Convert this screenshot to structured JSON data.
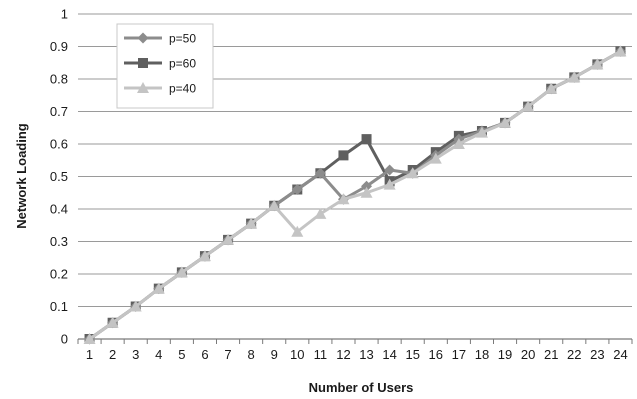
{
  "chart_data": {
    "type": "line",
    "title": "",
    "xlabel": "Number of Users",
    "ylabel": "Network Loading",
    "categories": [
      "1",
      "2",
      "3",
      "4",
      "5",
      "6",
      "7",
      "8",
      "9",
      "10",
      "11",
      "12",
      "13",
      "14",
      "15",
      "16",
      "17",
      "18",
      "19",
      "20",
      "21",
      "22",
      "23",
      "24"
    ],
    "ylim": [
      0,
      1
    ],
    "yticks": [
      "0",
      "0.1",
      "0.2",
      "0.3",
      "0.4",
      "0.5",
      "0.6",
      "0.7",
      "0.8",
      "0.9",
      "1"
    ],
    "grid": "horizontal",
    "legend_position": "top-left",
    "series": [
      {
        "name": "p=50",
        "marker": "diamond",
        "color": "#8c8c8c",
        "values": [
          0,
          0.05,
          0.1,
          0.155,
          0.205,
          0.255,
          0.305,
          0.355,
          0.41,
          0.46,
          0.51,
          0.43,
          0.47,
          0.52,
          0.51,
          0.565,
          0.615,
          0.64,
          0.665,
          0.715,
          0.77,
          0.805,
          0.845,
          0.885
        ]
      },
      {
        "name": "p=60",
        "marker": "square",
        "color": "#5f5f5f",
        "values": [
          0,
          0.05,
          0.1,
          0.155,
          0.205,
          0.255,
          0.305,
          0.355,
          0.41,
          0.46,
          0.51,
          0.565,
          0.615,
          0.485,
          0.52,
          0.575,
          0.625,
          0.64,
          0.665,
          0.715,
          0.77,
          0.805,
          0.845,
          0.885
        ]
      },
      {
        "name": "p=40",
        "marker": "triangle",
        "color": "#c4c4c4",
        "values": [
          0,
          0.05,
          0.1,
          0.155,
          0.205,
          0.255,
          0.305,
          0.355,
          0.41,
          0.33,
          0.385,
          0.43,
          0.45,
          0.475,
          0.51,
          0.555,
          0.6,
          0.635,
          0.665,
          0.715,
          0.77,
          0.805,
          0.845,
          0.885
        ]
      }
    ]
  }
}
